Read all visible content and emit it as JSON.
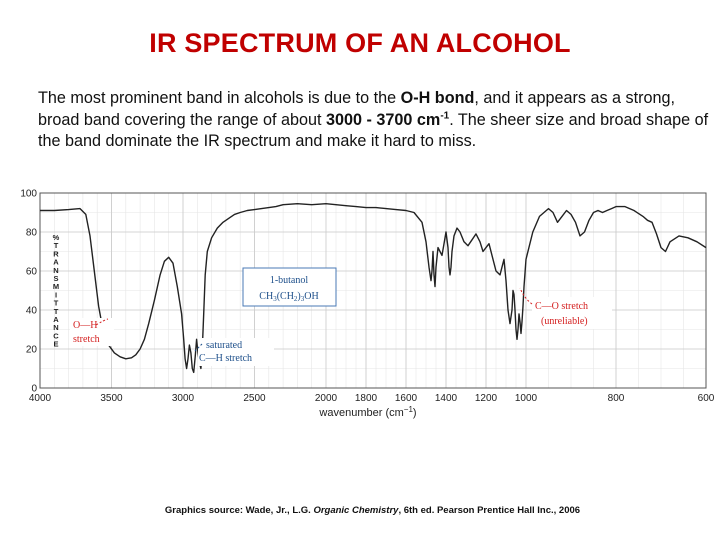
{
  "slide": {
    "title": "IR SPECTRUM OF AN ALCOHOL",
    "intro": {
      "t1": "The most prominent band in alcohols is due to the ",
      "b1": "O-H bond",
      "t2": ", and it appears as a strong, broad band covering the range of about ",
      "b2": "3000 - 3700 cm",
      "sup": "-1",
      "t3": ". The sheer size and broad shape of the band dominate the IR spectrum and make it hard to miss."
    },
    "source": {
      "prefix": "Graphics source: Wade, Jr., L.G. ",
      "book": "Organic Chemistry",
      "suffix": ", 6th ed. Pearson Prentice Hall Inc., 2006"
    }
  },
  "chart_data": {
    "type": "line",
    "xlabel": "wavenumber (cm",
    "xlabel_sup": "−1",
    "xlabel_end": ")",
    "ylabel": "%TRANSMITTANCE",
    "x_axis_note": "x axis reversed, scale changes at 2000 and 1000 cm-1",
    "xlim": [
      4000,
      600
    ],
    "ylim": [
      0,
      100
    ],
    "x_ticks": [
      4000,
      3500,
      3000,
      2500,
      2000,
      1800,
      1600,
      1400,
      1200,
      1000,
      800,
      600
    ],
    "y_ticks": [
      0,
      20,
      40,
      60,
      80,
      100
    ],
    "grid": true,
    "colors": {
      "trace": "#222222",
      "grid": "#c9c9c9",
      "minor_grid": "#e6e6e6",
      "oh": "#d42020",
      "label": "#1d4f8a",
      "box": "#4a7ab5",
      "title": "#c00000"
    },
    "series": [
      {
        "x": [
          4000,
          3900,
          3800,
          3720,
          3680,
          3650,
          3620,
          3590,
          3560,
          3520,
          3480,
          3440,
          3400,
          3360,
          3330,
          3300,
          3270,
          3240,
          3200,
          3160,
          3130,
          3100,
          3070,
          3040,
          3010,
          2995,
          2985,
          2975,
          2965,
          2955,
          2945,
          2935,
          2925,
          2915,
          2905,
          2895,
          2885,
          2875,
          2865,
          2855,
          2845,
          2830,
          2800,
          2760,
          2720,
          2680,
          2640,
          2600,
          2550,
          2500,
          2450,
          2400,
          2350,
          2300,
          2200,
          2100,
          2000,
          1950,
          1900,
          1850,
          1800,
          1750,
          1700,
          1650,
          1600,
          1560,
          1520,
          1500,
          1485,
          1475,
          1470,
          1465,
          1460,
          1455,
          1450,
          1440,
          1430,
          1420,
          1410,
          1400,
          1390,
          1385,
          1380,
          1375,
          1370,
          1360,
          1345,
          1330,
          1310,
          1290,
          1270,
          1250,
          1230,
          1215,
          1200,
          1185,
          1170,
          1150,
          1130,
          1120,
          1110,
          1100,
          1090,
          1080,
          1070,
          1065,
          1060,
          1055,
          1050,
          1045,
          1040,
          1035,
          1030,
          1025,
          1020,
          1015,
          1010,
          1000,
          985,
          970,
          960,
          950,
          940,
          930,
          920,
          910,
          900,
          890,
          880,
          870,
          860,
          850,
          840,
          830,
          820,
          810,
          800,
          780,
          760,
          740,
          730,
          720,
          710,
          700,
          690,
          680,
          660,
          640,
          620,
          600
        ],
        "y": [
          91,
          91,
          91.5,
          92,
          89,
          78,
          60,
          42,
          30,
          22,
          18,
          16,
          15,
          15.5,
          17,
          20,
          25,
          33,
          45,
          58,
          65,
          67,
          64,
          52,
          38,
          25,
          15,
          10,
          15,
          22,
          18,
          10,
          8,
          16,
          25,
          18,
          13,
          10,
          20,
          38,
          58,
          70,
          77,
          82,
          85,
          87,
          89,
          90,
          91,
          91.5,
          92,
          92.5,
          93,
          94,
          94.5,
          94,
          94.5,
          94,
          93.5,
          93,
          92.5,
          92.5,
          92,
          91.5,
          91,
          90,
          85,
          75,
          62,
          55,
          60,
          70,
          58,
          52,
          62,
          72,
          70,
          68,
          74,
          80,
          72,
          62,
          58,
          62,
          70,
          78,
          82,
          80,
          75,
          73,
          76,
          79,
          75,
          70,
          72,
          74,
          68,
          60,
          58,
          62,
          66,
          55,
          40,
          33,
          40,
          50,
          48,
          40,
          30,
          25,
          30,
          38,
          34,
          28,
          34,
          42,
          52,
          66,
          80,
          88,
          90,
          92,
          90,
          85,
          88,
          91,
          89,
          85,
          78,
          80,
          86,
          90,
          91,
          90,
          91,
          92,
          93,
          93,
          91,
          88,
          86,
          85,
          79,
          72,
          70,
          75,
          78,
          77,
          75,
          72
        ]
      }
    ],
    "labels": {
      "compound_name": "1-butanol",
      "formula_pre": "CH",
      "formula_s1": "3",
      "formula_mid": "(CH",
      "formula_s2": "2",
      "formula_mid2": ")",
      "formula_s3": "3",
      "formula_end": "OH",
      "oh_line1": "O—H",
      "oh_line2": "stretch",
      "ch_line1": "saturated",
      "ch_line2": "C—H stretch",
      "co_line1": "C—O stretch",
      "co_line2": "(unreliable)"
    }
  }
}
